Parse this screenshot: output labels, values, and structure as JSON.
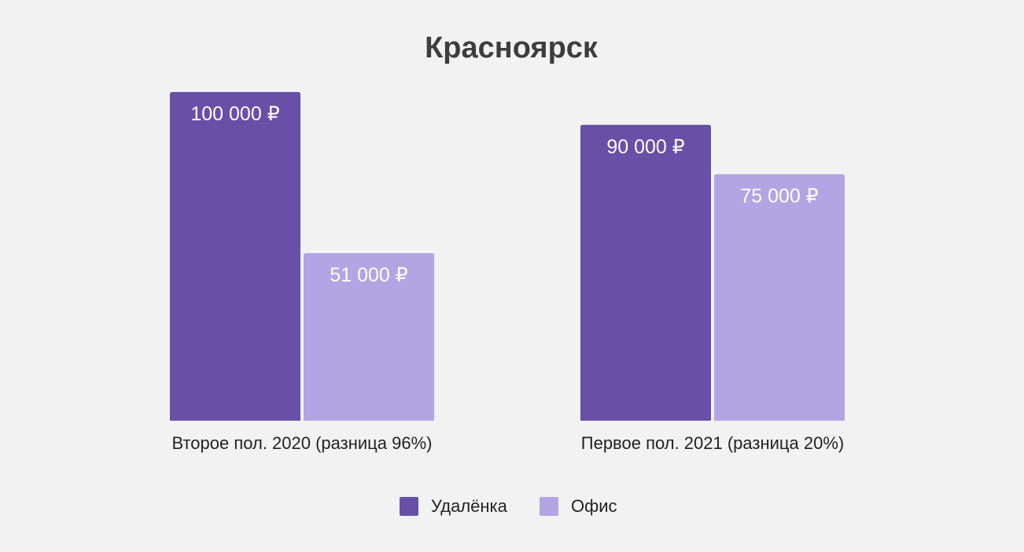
{
  "chart_data": {
    "type": "bar",
    "title": "Красноярск",
    "categories": [
      "Второе пол. 2020 (разница 96%)",
      "Первое пол. 2021 (разница 20%)"
    ],
    "series": [
      {
        "name": "Удалёнка",
        "color": "#6850a8",
        "values": [
          100000,
          90000
        ],
        "labels": [
          "100 000 ₽",
          "90 000 ₽"
        ]
      },
      {
        "name": "Офис",
        "color": "#b3a4e3",
        "values": [
          51000,
          75000
        ],
        "labels": [
          "51 000 ₽",
          "75 000 ₽"
        ]
      }
    ],
    "ylim": [
      0,
      100000
    ],
    "grid": false,
    "legend": "bottom-center"
  }
}
